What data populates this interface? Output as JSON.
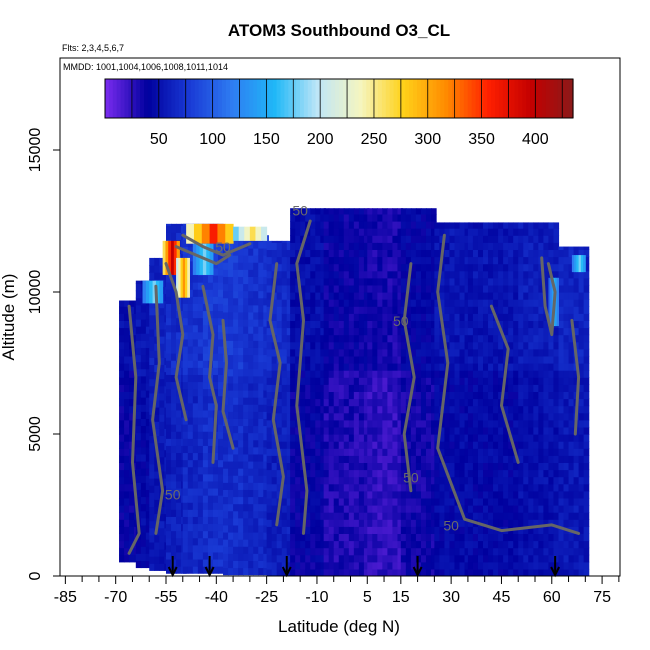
{
  "chart_data": {
    "type": "heatmap",
    "title": "ATOM3 Southbound O3_CL",
    "flights_note": "Flts: 2,3,4,5,6,7",
    "dates_note": "MMDD: 1001,1004,1006,1008,1011,1014",
    "xlabel": "Latitude (deg N)",
    "ylabel": "Altitude (m)",
    "xlim": [
      -85,
      85
    ],
    "ylim": [
      0,
      17500
    ],
    "x_tick_labels": [
      "-85",
      "-70",
      "-55",
      "-40",
      "-25",
      "-10",
      "5",
      "15",
      "30",
      "45",
      "60",
      "75"
    ],
    "x_tick_values": [
      -85,
      -70,
      -55,
      -40,
      -25,
      -10,
      5,
      15,
      30,
      45,
      60,
      75
    ],
    "y_tick_labels": [
      "0",
      "5000",
      "10000",
      "15000"
    ],
    "y_tick_values": [
      0,
      5000,
      10000,
      15000
    ],
    "colorbar": {
      "tick_labels": [
        "50",
        "100",
        "150",
        "200",
        "250",
        "300",
        "350",
        "400"
      ],
      "tick_values": [
        50,
        100,
        150,
        200,
        250,
        300,
        350,
        400
      ],
      "range": [
        0,
        435
      ],
      "colors": [
        "#7b2cf0",
        "#00009e",
        "#1a3bd6",
        "#2e7df2",
        "#20b8f7",
        "#bfe6f7",
        "#f5f5c0",
        "#ffd21a",
        "#ff8c00",
        "#ff2000",
        "#c40000",
        "#8b1a1a"
      ]
    },
    "contour_level_labels": [
      "50",
      "50",
      "50",
      "50",
      "50",
      "50"
    ],
    "profile_marker_latitudes": [
      -53,
      -42,
      -19,
      20,
      61
    ],
    "columns": [
      {
        "x0": -69,
        "x1": -64,
        "top": 9700,
        "bottom": 500,
        "o3": 40
      },
      {
        "x0": -64,
        "x1": -60,
        "top": 10400,
        "bottom": 300,
        "o3": 45
      },
      {
        "x0": -60,
        "x1": -55,
        "top": 11200,
        "bottom": 200,
        "o3": 55
      },
      {
        "x0": -55,
        "x1": -50,
        "top": 12400,
        "bottom": 100,
        "o3": 60
      },
      {
        "x0": -50,
        "x1": -44,
        "top": 12400,
        "bottom": 100,
        "o3": 65
      },
      {
        "x0": -44,
        "x1": -38,
        "top": 12400,
        "bottom": 100,
        "o3": 70
      },
      {
        "x0": -38,
        "x1": -32,
        "top": 12200,
        "bottom": 50,
        "o3": 70
      },
      {
        "x0": -32,
        "x1": -25,
        "top": 12000,
        "bottom": 50,
        "o3": 65
      },
      {
        "x0": -25,
        "x1": -18,
        "top": 11800,
        "bottom": 0,
        "o3": 60
      },
      {
        "x0": -18,
        "x1": -8,
        "top": 12950,
        "bottom": 0,
        "o3": 40
      },
      {
        "x0": -8,
        "x1": 5,
        "top": 12950,
        "bottom": 0,
        "o3": 30
      },
      {
        "x0": 5,
        "x1": 15,
        "top": 12950,
        "bottom": 0,
        "o3": 25
      },
      {
        "x0": 15,
        "x1": 25,
        "top": 12950,
        "bottom": 0,
        "o3": 35
      },
      {
        "x0": 25,
        "x1": 35,
        "top": 12450,
        "bottom": 0,
        "o3": 45
      },
      {
        "x0": 35,
        "x1": 50,
        "top": 12450,
        "bottom": 0,
        "o3": 45
      },
      {
        "x0": 50,
        "x1": 62,
        "top": 12450,
        "bottom": 0,
        "o3": 50
      },
      {
        "x0": 62,
        "x1": 70,
        "top": 11600,
        "bottom": 0,
        "o3": 55
      }
    ],
    "high_o3_patches": [
      {
        "x0": -49,
        "x1": -35,
        "y0": 11700,
        "y1": 12400,
        "o3": 300
      },
      {
        "x0": -35,
        "x1": -25,
        "y0": 11800,
        "y1": 12300,
        "o3": 220
      },
      {
        "x0": -56,
        "x1": -51,
        "y0": 10600,
        "y1": 11800,
        "o3": 330
      },
      {
        "x0": -52,
        "x1": -48,
        "y0": 9800,
        "y1": 11200,
        "o3": 260
      },
      {
        "x0": -47,
        "x1": -41,
        "y0": 10600,
        "y1": 11700,
        "o3": 150
      },
      {
        "x0": -62,
        "x1": -56,
        "y0": 9600,
        "y1": 10400,
        "o3": 150
      },
      {
        "x0": 59,
        "x1": 62,
        "y0": 8800,
        "y1": 10500,
        "o3": 130
      },
      {
        "x0": 66,
        "x1": 70,
        "y0": 10700,
        "y1": 11300,
        "o3": 150
      }
    ]
  }
}
